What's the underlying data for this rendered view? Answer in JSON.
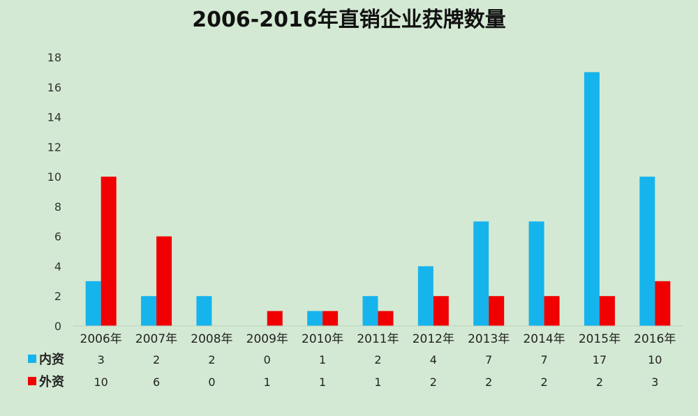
{
  "chart_data": {
    "type": "bar",
    "title": "2006-2016年直销企业获牌数量",
    "categories": [
      "2006年",
      "2007年",
      "2008年",
      "2009年",
      "2010年",
      "2011年",
      "2012年",
      "2013年",
      "2014年",
      "2015年",
      "2016年"
    ],
    "series": [
      {
        "name": "内资",
        "values": [
          3,
          2,
          2,
          0,
          1,
          2,
          4,
          7,
          7,
          17,
          10
        ],
        "color": "#16b4ec"
      },
      {
        "name": "外资",
        "values": [
          10,
          6,
          0,
          1,
          1,
          1,
          2,
          2,
          2,
          2,
          3
        ],
        "color": "#f00000"
      }
    ],
    "ylim": [
      0,
      18
    ],
    "yticks": [
      0,
      2,
      4,
      6,
      8,
      10,
      12,
      14,
      16,
      18
    ],
    "xlabel": "",
    "ylabel": "",
    "grid": false,
    "legend": "data-table-left"
  }
}
